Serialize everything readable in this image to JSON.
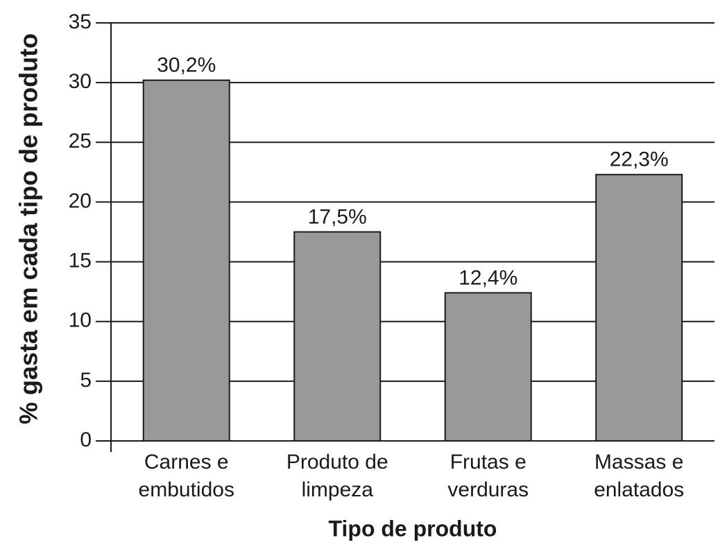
{
  "chart_data": {
    "type": "bar",
    "y_label": "% gasta em cada tipo de produto",
    "x_label": "Tipo de produto",
    "categories": [
      [
        "Carnes e",
        "embutidos"
      ],
      [
        "Produto de",
        "limpeza"
      ],
      [
        "Frutas e",
        "verduras"
      ],
      [
        "Massas e",
        "enlatados"
      ]
    ],
    "values": [
      30.2,
      17.5,
      12.4,
      22.3
    ],
    "value_labels": [
      "30,2%",
      "17,5%",
      "12,4%",
      "22,3%"
    ],
    "color": "#999999",
    "ylim": [
      0,
      35
    ],
    "yticks": [
      0,
      5,
      10,
      15,
      20,
      25,
      30,
      35
    ],
    "grid": true
  }
}
